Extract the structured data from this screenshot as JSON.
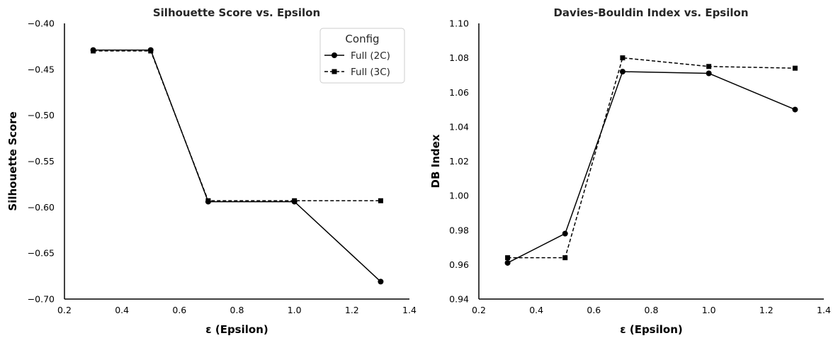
{
  "chart_data": [
    {
      "type": "line",
      "title": "Silhouette Score vs. Epsilon",
      "xlabel": "ε (Epsilon)",
      "ylabel": "Silhouette Score",
      "xlim": [
        0.2,
        1.4
      ],
      "ylim": [
        -0.7,
        -0.4
      ],
      "xticks": [
        "0.2",
        "0.4",
        "0.6",
        "0.8",
        "1.0",
        "1.2",
        "1.4"
      ],
      "yticks": [
        "−0.70",
        "−0.65",
        "−0.60",
        "−0.55",
        "−0.50",
        "−0.45",
        "−0.40"
      ],
      "grid": false,
      "legend": {
        "title": "Config",
        "position": "top-right"
      },
      "x": [
        0.3,
        0.5,
        0.7,
        1.0,
        1.3
      ],
      "series": [
        {
          "name": "Full (2C)",
          "marker": "circle",
          "linestyle": "solid",
          "values": [
            -0.429,
            -0.429,
            -0.594,
            -0.594,
            -0.681
          ]
        },
        {
          "name": "Full (3C)",
          "marker": "square",
          "linestyle": "dashed",
          "values": [
            -0.43,
            -0.43,
            -0.593,
            -0.593,
            -0.593
          ]
        }
      ]
    },
    {
      "type": "line",
      "title": "Davies-Bouldin Index vs. Epsilon",
      "xlabel": "ε (Epsilon)",
      "ylabel": "DB Index",
      "xlim": [
        0.2,
        1.4
      ],
      "ylim": [
        0.94,
        1.1
      ],
      "xticks": [
        "0.2",
        "0.4",
        "0.6",
        "0.8",
        "1.0",
        "1.2",
        "1.4"
      ],
      "yticks": [
        "0.94",
        "0.96",
        "0.98",
        "1.00",
        "1.02",
        "1.04",
        "1.06",
        "1.08",
        "1.10"
      ],
      "grid": false,
      "x": [
        0.3,
        0.5,
        0.7,
        1.0,
        1.3
      ],
      "series": [
        {
          "name": "Full (2C)",
          "marker": "circle",
          "linestyle": "solid",
          "values": [
            0.961,
            0.978,
            1.072,
            1.071,
            1.05
          ]
        },
        {
          "name": "Full (3C)",
          "marker": "square",
          "linestyle": "dashed",
          "values": [
            0.964,
            0.964,
            1.08,
            1.075,
            1.074
          ]
        }
      ]
    }
  ],
  "colors": {
    "line": "#000000",
    "legend_border": "#cccccc"
  }
}
